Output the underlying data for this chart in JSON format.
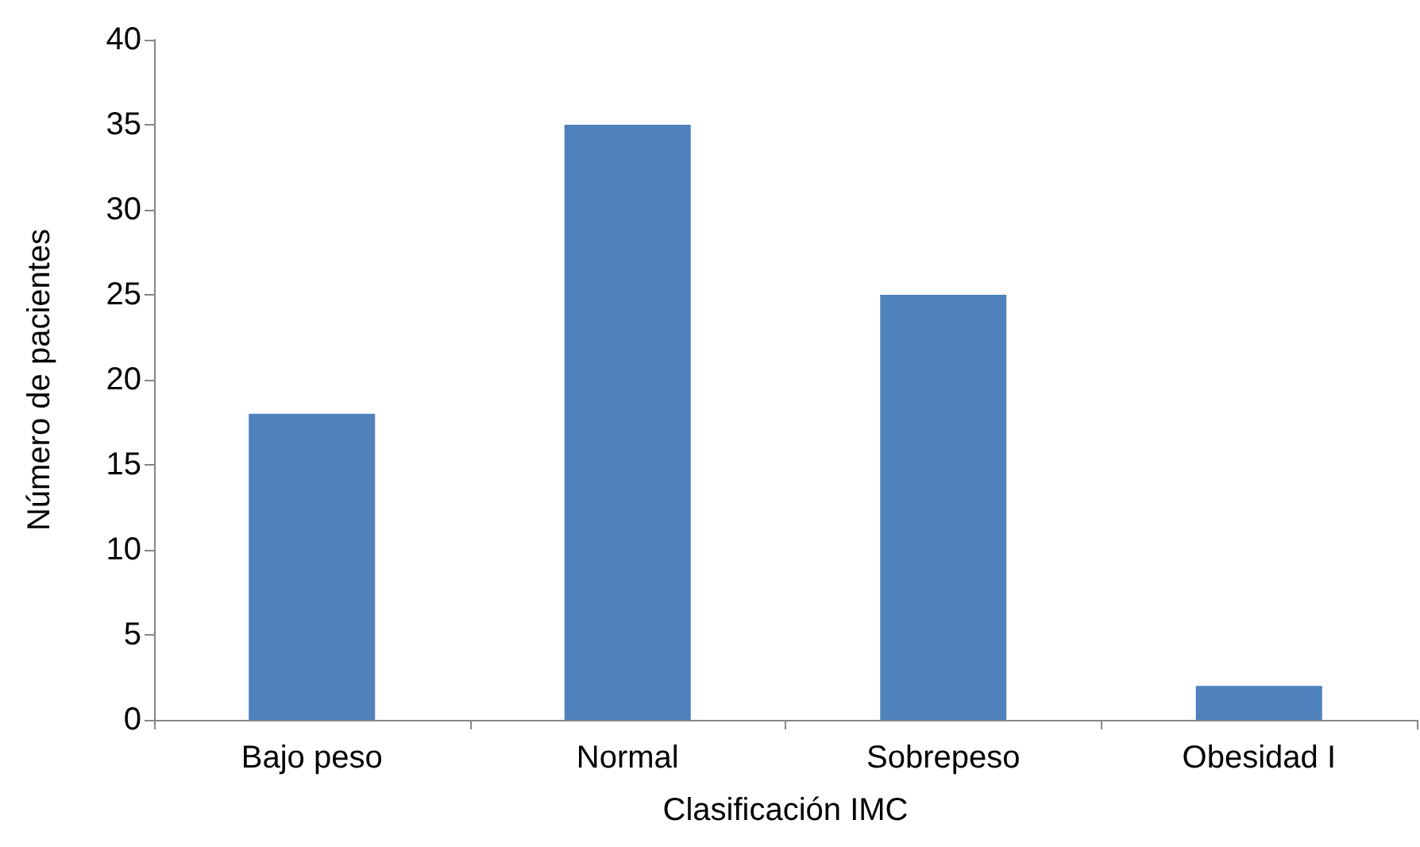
{
  "chart_data": {
    "type": "bar",
    "xlabel": "Clasificación IMC",
    "ylabel": "Número de pacientes",
    "categories": [
      "Bajo peso",
      "Normal",
      "Sobrepeso",
      "Obesidad I"
    ],
    "values": [
      18,
      35,
      25,
      2
    ],
    "color": "#4f81bd",
    "ylim": [
      0,
      40
    ],
    "yticks": [
      0,
      5,
      10,
      15,
      20,
      25,
      30,
      35,
      40
    ],
    "grid": false
  }
}
